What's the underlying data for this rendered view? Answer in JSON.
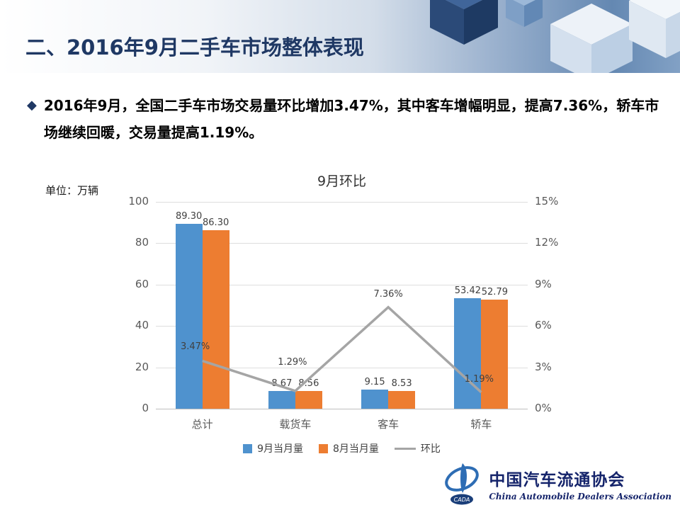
{
  "slide": {
    "title": "二、2016年9月二手车市场整体表现",
    "bullet_icon": "◆",
    "bullet": "2016年9月，全国二手车市场交易量环比增加3.47%，其中客车增幅明显，提高7.36%，轿车市场继续回暖，交易量提高1.19%。"
  },
  "chart_data": {
    "type": "combo",
    "title": "9月环比",
    "unit_label": "单位：万辆",
    "categories": [
      "总计",
      "载货车",
      "客车",
      "轿车"
    ],
    "series": [
      {
        "name": "9月当月量",
        "type": "bar",
        "axis": "left",
        "color": "#4f92ce",
        "values": [
          89.3,
          8.67,
          9.15,
          53.42
        ]
      },
      {
        "name": "8月当月量",
        "type": "bar",
        "axis": "left",
        "color": "#ed7d31",
        "values": [
          86.3,
          8.56,
          8.53,
          52.79
        ]
      },
      {
        "name": "环比",
        "type": "line",
        "axis": "right",
        "color": "#a5a5a5",
        "values": [
          3.47,
          1.29,
          7.36,
          1.19
        ]
      }
    ],
    "left_axis": {
      "min": 0,
      "max": 100,
      "ticks": [
        0,
        20,
        40,
        60,
        80,
        100
      ]
    },
    "right_axis": {
      "min": 0,
      "max": 15,
      "ticks_pct": [
        "0%",
        "3%",
        "6%",
        "9%",
        "12%",
        "15%"
      ]
    },
    "grid": true,
    "legend_position": "bottom"
  },
  "logo": {
    "cn": "中国汽车流通协会",
    "en": "China Automobile Dealers Association",
    "mark": "CADA"
  }
}
